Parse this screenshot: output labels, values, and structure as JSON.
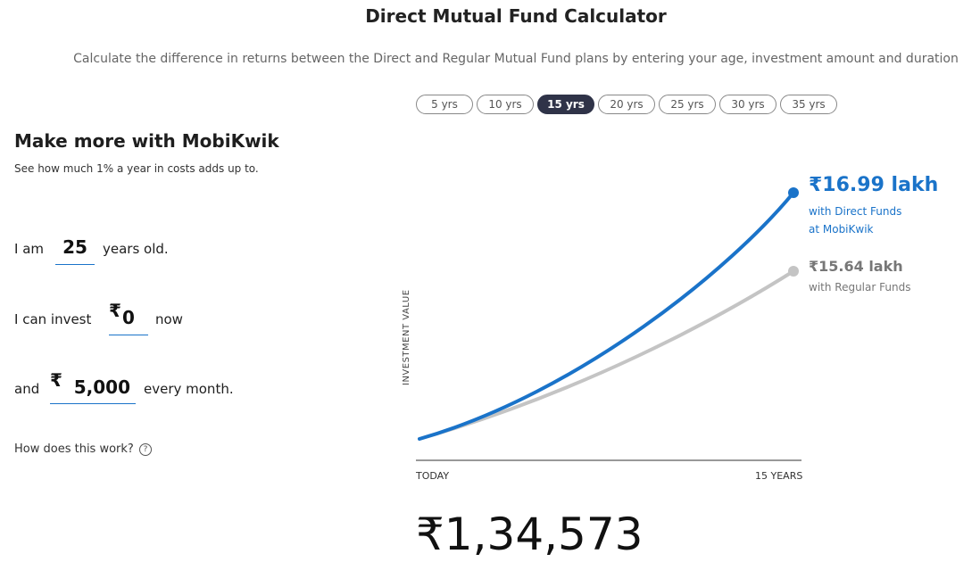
{
  "header": {
    "title": "Direct Mutual Fund Calculator",
    "subtitle": "Calculate the difference in returns between the Direct and Regular Mutual Fund plans by entering your age, investment amount and duration"
  },
  "tabs": [
    {
      "label": "5 yrs"
    },
    {
      "label": "10 yrs"
    },
    {
      "label": "15 yrs",
      "active": true
    },
    {
      "label": "20 yrs"
    },
    {
      "label": "25 yrs"
    },
    {
      "label": "30 yrs"
    },
    {
      "label": "35 yrs"
    }
  ],
  "left": {
    "heading": "Make more with MobiKwik",
    "subheading": "See how much 1% a year in costs adds up to.",
    "age_prefix": "I am",
    "age_value": "25",
    "age_suffix": "years old.",
    "invest_prefix": "I can invest",
    "currency_symbol": "₹",
    "invest_value": "0",
    "invest_suffix": "now",
    "monthly_prefix": "and",
    "monthly_value": "5,000",
    "monthly_suffix": "every month.",
    "how_link": "How does this work?",
    "how_icon": "?"
  },
  "chart": {
    "ylabel": "INVESTMENT VALUE",
    "x_start": "TODAY",
    "x_end": "15 YEARS",
    "direct_value": "₹16.99 lakh",
    "direct_caption_1": "with Direct Funds",
    "direct_caption_2": "at MobiKwik",
    "regular_value": "₹15.64 lakh",
    "regular_caption": "with Regular Funds",
    "direct_color": "#1a73c9",
    "regular_color": "#c4c4c4"
  },
  "chart_data": {
    "type": "line",
    "x": [
      "TODAY",
      "15 YEARS"
    ],
    "series": [
      {
        "name": "with Direct Funds",
        "end_value_lakh": 16.99
      },
      {
        "name": "with Regular Funds",
        "end_value_lakh": 15.64
      }
    ]
  },
  "difference": "₹1,34,573"
}
